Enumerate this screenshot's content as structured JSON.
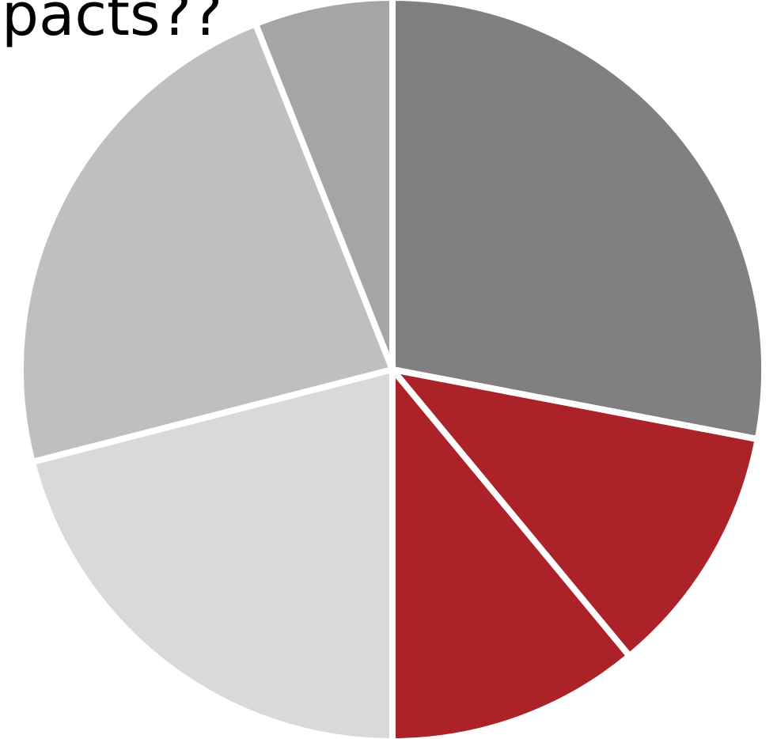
{
  "chart_data": {
    "type": "pie",
    "title": "pacts??",
    "values": [
      28,
      11,
      11,
      21,
      23,
      6
    ],
    "colors": [
      "#808080",
      "#ab2328",
      "#ab2328",
      "#d9d9d9",
      "#bfbfbf",
      "#a5a5a5"
    ],
    "start_angle": 0,
    "direction": "clockwise"
  }
}
